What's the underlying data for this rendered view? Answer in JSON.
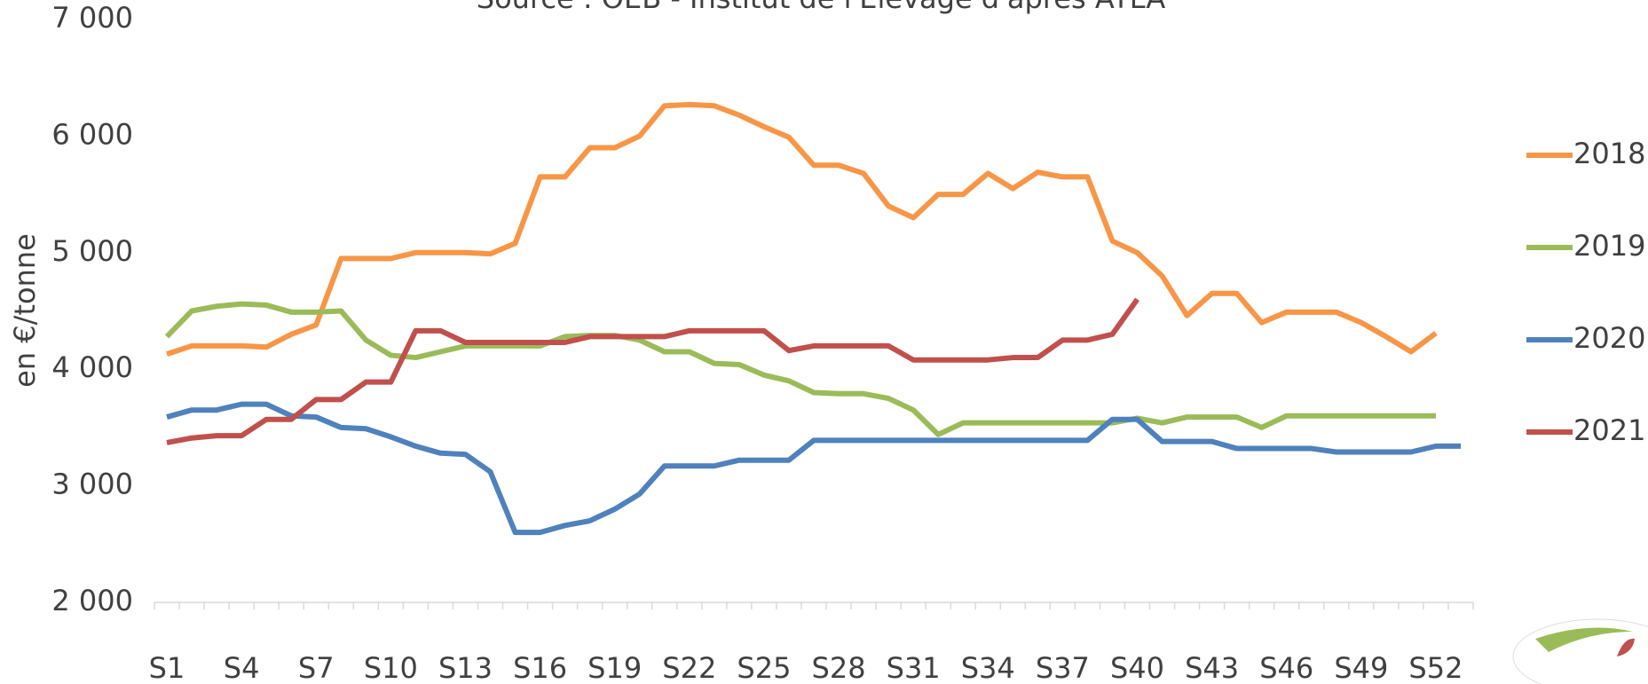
{
  "chart_data": {
    "type": "line",
    "title": "Source : OEB - Institut de l'Elevage d'après ATLA",
    "y_label": "en €/tonne",
    "categories": [
      "S1",
      null,
      null,
      "S4",
      null,
      null,
      "S7",
      null,
      null,
      "S10",
      null,
      null,
      "S13",
      null,
      null,
      "S16",
      null,
      null,
      "S19",
      null,
      null,
      "S22",
      null,
      null,
      "S25",
      null,
      null,
      "S28",
      null,
      null,
      "S31",
      null,
      null,
      "S34",
      null,
      null,
      "S37",
      null,
      null,
      "S40",
      null,
      null,
      "S43",
      null,
      null,
      "S46",
      null,
      null,
      "S49",
      null,
      null,
      "S52",
      null
    ],
    "ylim": [
      2000,
      7000
    ],
    "yticks": [
      {
        "value": 2000,
        "label": "2 000"
      },
      {
        "value": 3000,
        "label": "3 000"
      },
      {
        "value": 4000,
        "label": "4 000"
      },
      {
        "value": 5000,
        "label": "5 000"
      },
      {
        "value": 6000,
        "label": "6 000"
      },
      {
        "value": 7000,
        "label": "7 000"
      }
    ],
    "grid": false,
    "legend": "right",
    "series": [
      {
        "name": "2018",
        "color": "#f79646",
        "values": [
          4130,
          4200,
          4200,
          4200,
          4190,
          4300,
          4380,
          4950,
          4950,
          4950,
          5000,
          5000,
          5000,
          4990,
          5080,
          5650,
          5650,
          5900,
          5900,
          6000,
          6260,
          6270,
          6260,
          6180,
          6080,
          5990,
          5750,
          5750,
          5680,
          5400,
          5300,
          5500,
          5500,
          5680,
          5550,
          5690,
          5650,
          5650,
          5100,
          5000,
          4800,
          4460,
          4650,
          4650,
          4400,
          4490,
          4490,
          4490,
          4400,
          4280,
          4150,
          4310,
          null
        ]
      },
      {
        "name": "2019",
        "color": "#9bbb59",
        "values": [
          4280,
          4500,
          4540,
          4560,
          4550,
          4490,
          4490,
          4500,
          4250,
          4120,
          4100,
          4150,
          4200,
          4200,
          4200,
          4200,
          4280,
          4290,
          4290,
          4250,
          4150,
          4150,
          4050,
          4040,
          3950,
          3900,
          3800,
          3790,
          3790,
          3750,
          3650,
          3440,
          3540,
          3540,
          3540,
          3540,
          3540,
          3540,
          3540,
          3580,
          3540,
          3590,
          3590,
          3590,
          3500,
          3600,
          3600,
          3600,
          3600,
          3600,
          3600,
          3600,
          null
        ]
      },
      {
        "name": "2020",
        "color": "#4f81bd",
        "values": [
          3590,
          3650,
          3650,
          3700,
          3700,
          3600,
          3590,
          3500,
          3490,
          3420,
          3340,
          3280,
          3270,
          3120,
          2600,
          2600,
          2660,
          2700,
          2800,
          2930,
          3170,
          3170,
          3170,
          3220,
          3220,
          3220,
          3390,
          3390,
          3390,
          3390,
          3390,
          3390,
          3390,
          3390,
          3390,
          3390,
          3390,
          3390,
          3570,
          3570,
          3380,
          3380,
          3380,
          3320,
          3320,
          3320,
          3320,
          3290,
          3290,
          3290,
          3290,
          3340,
          3340
        ]
      },
      {
        "name": "2021",
        "color": "#c0504d",
        "values": [
          3370,
          3410,
          3430,
          3430,
          3570,
          3570,
          3740,
          3740,
          3890,
          3890,
          4330,
          4330,
          4230,
          4230,
          4230,
          4230,
          4230,
          4280,
          4280,
          4280,
          4280,
          4330,
          4330,
          4330,
          4330,
          4160,
          4200,
          4200,
          4200,
          4200,
          4080,
          4080,
          4080,
          4080,
          4100,
          4100,
          4250,
          4250,
          4300,
          4600,
          null,
          null,
          null,
          null,
          null,
          null,
          null,
          null,
          null,
          null,
          null,
          null,
          null
        ]
      }
    ]
  }
}
